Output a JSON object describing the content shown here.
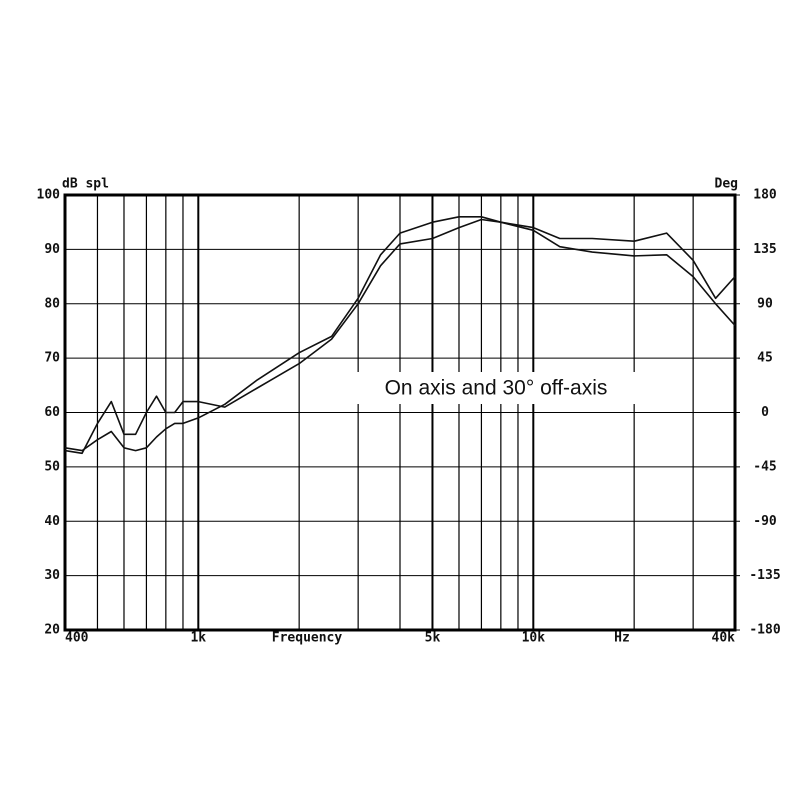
{
  "chart_data": {
    "type": "line",
    "ylabel": "dB spl",
    "y2label": "Deg",
    "xlabel": "Frequency",
    "x_unit": "Hz",
    "annotation": "On axis and 30° off-axis",
    "xscale": "log",
    "xlim": [
      400,
      40000
    ],
    "ylim": [
      20,
      100
    ],
    "y2lim": [
      -180,
      180
    ],
    "xticks": [
      400,
      {
        "value": 1000,
        "label": "1k"
      },
      {
        "value": 5000,
        "label": "5k"
      },
      {
        "value": 10000,
        "label": "10k"
      },
      {
        "value": 40000,
        "label": "40k"
      }
    ],
    "x_minor_ticks": [
      500,
      600,
      700,
      800,
      900,
      2000,
      3000,
      4000,
      6000,
      7000,
      8000,
      9000,
      20000,
      30000
    ],
    "yticks": [
      20,
      30,
      40,
      50,
      60,
      70,
      80,
      90,
      100
    ],
    "y2ticks": [
      -180,
      -135,
      -90,
      -45,
      0,
      45,
      90,
      135,
      180
    ],
    "grid": true,
    "x": [
      400,
      450,
      500,
      550,
      600,
      650,
      700,
      750,
      800,
      850,
      900,
      1000,
      1200,
      1500,
      2000,
      2500,
      3000,
      3500,
      4000,
      5000,
      6000,
      7000,
      8000,
      10000,
      12000,
      15000,
      20000,
      25000,
      30000,
      35000,
      40000
    ],
    "series": [
      {
        "color": "#111111",
        "values": [
          53,
          52.5,
          58,
          62,
          56,
          56,
          60,
          63,
          60,
          60,
          62,
          62,
          61,
          64.5,
          69,
          73.5,
          80,
          87,
          91,
          92,
          94,
          95.5,
          95,
          94,
          92,
          92,
          91.5,
          93,
          88,
          81,
          85
        ]
      },
      {
        "color": "#111111",
        "values": [
          53.5,
          53,
          55,
          56.5,
          53.5,
          53,
          53.5,
          55.5,
          57,
          58,
          58,
          59,
          61.5,
          66,
          71,
          74,
          81,
          89,
          93,
          95,
          96,
          96,
          95,
          93.5,
          90.5,
          89.5,
          88.8,
          89,
          85,
          80,
          76
        ]
      }
    ]
  }
}
